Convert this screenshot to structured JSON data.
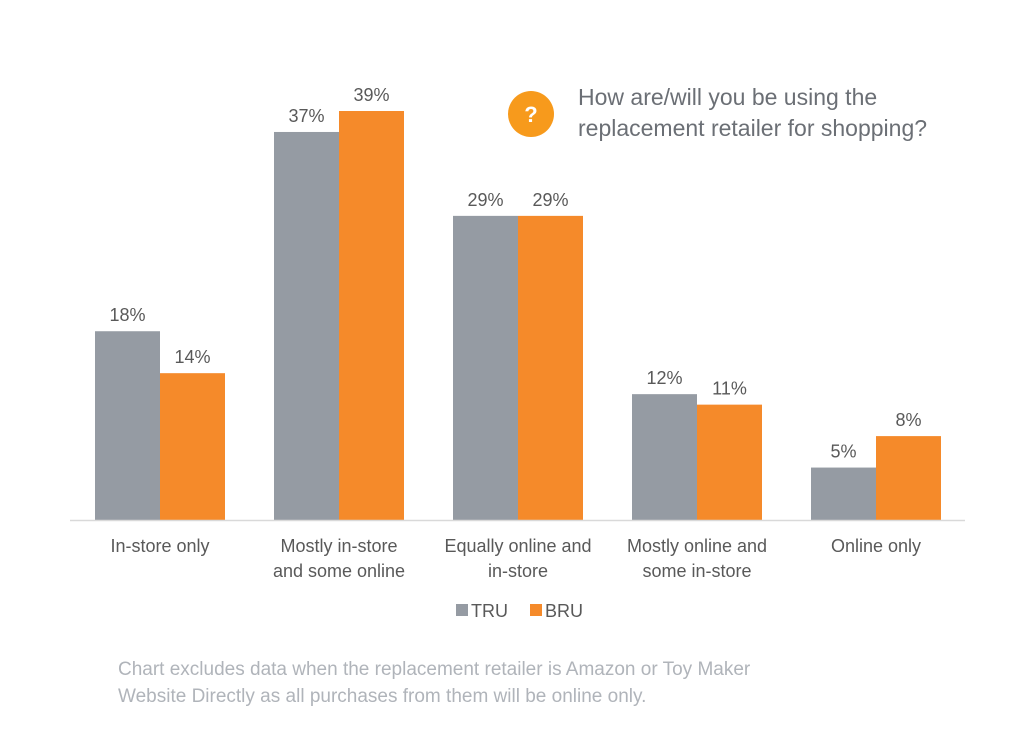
{
  "chart_data": {
    "type": "bar",
    "question": [
      "How are/will you be using the",
      "replacement retailer for shopping?"
    ],
    "question_icon": {
      "name": "question-mark-icon",
      "glyph": "?"
    },
    "categories": [
      [
        "In-store only"
      ],
      [
        "Mostly in-store",
        "and some online"
      ],
      [
        "Equally online and",
        "in-store"
      ],
      [
        "Mostly online and",
        "some in-store"
      ],
      [
        "Online only"
      ]
    ],
    "series": [
      {
        "name": "TRU",
        "color": "#959ba3",
        "values": [
          18,
          37,
          29,
          12,
          5
        ],
        "labels": [
          "18%",
          "37%",
          "29%",
          "12%",
          "5%"
        ]
      },
      {
        "name": "BRU",
        "color": "#f58a2a",
        "values": [
          14,
          39,
          29,
          11,
          8
        ],
        "labels": [
          "14%",
          "39%",
          "29%",
          "11%",
          "8%"
        ]
      }
    ],
    "ylim": [
      0,
      39
    ],
    "grid": false,
    "legend": "bottom-center",
    "colors": {
      "axis": "#d9d9d9",
      "text": "#595959",
      "footnote": "#b0b4ba",
      "accent": "#f79a1c"
    }
  },
  "footnote": {
    "line1": "Chart excludes data when the replacement retailer is Amazon or Toy Maker",
    "line2": "Website Directly as all purchases from them will be online only."
  }
}
